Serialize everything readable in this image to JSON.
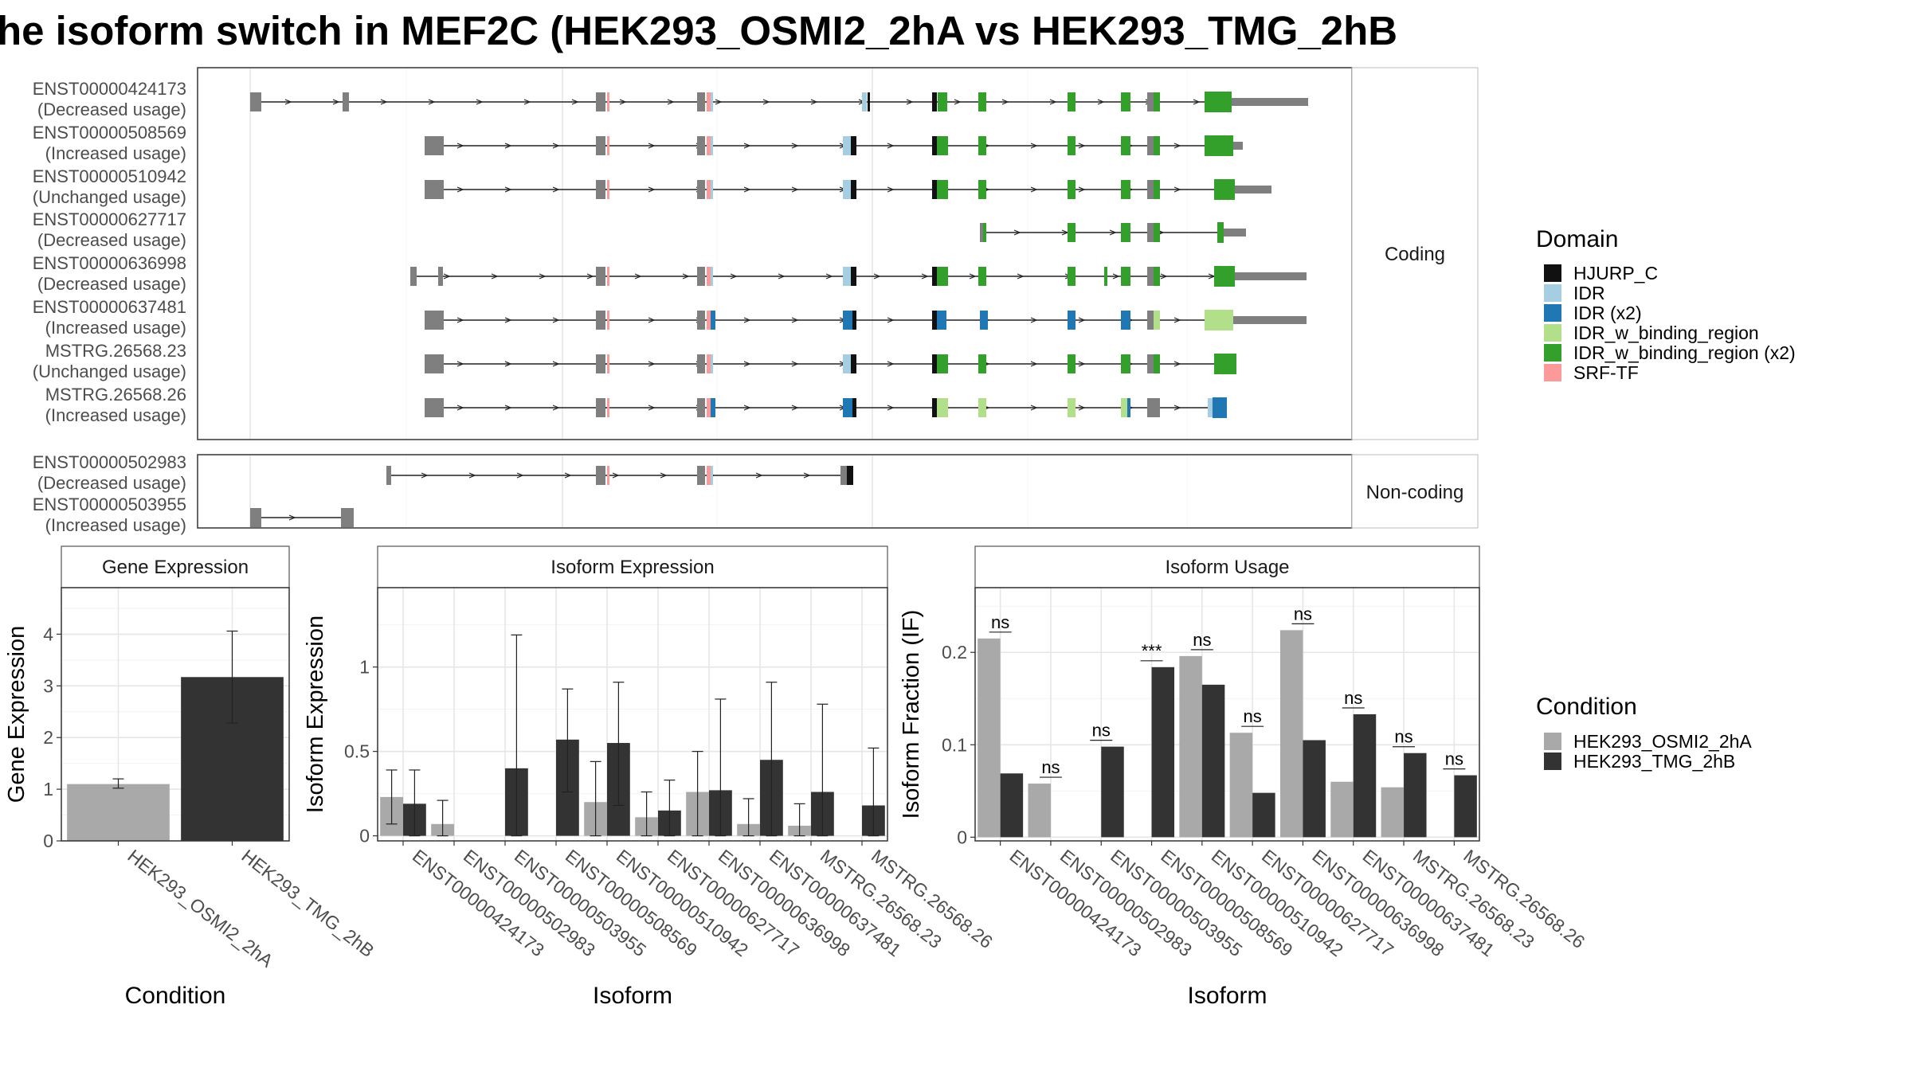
{
  "title": "he isoform switch in MEF2C (HEK293_OSMI2_2hA vs HEK293_TMG_2hB",
  "colors": {
    "exon": "#7f7f7f",
    "HJURP_C": "#111111",
    "IDR": "#a6cee3",
    "IDR (x2)": "#1f78b4",
    "IDR_w_binding_region": "#b2df8a",
    "IDR_w_binding_region (x2)": "#33a02c",
    "SRF-TF": "#fb9a99",
    "HEK293_OSMI2_2hA": "#a9a9a9",
    "HEK293_TMG_2hB": "#333333"
  },
  "structure": {
    "strip_coding": "Coding",
    "strip_noncoding": "Non-coding",
    "coding": [
      {
        "id": "ENST00000424173",
        "usage": "(Decreased usage)"
      },
      {
        "id": "ENST00000508569",
        "usage": "(Increased usage)"
      },
      {
        "id": "ENST00000510942",
        "usage": "(Unchanged usage)"
      },
      {
        "id": "ENST00000627717",
        "usage": "(Decreased usage)"
      },
      {
        "id": "ENST00000636998",
        "usage": "(Decreased usage)"
      },
      {
        "id": "ENST00000637481",
        "usage": "(Increased usage)"
      },
      {
        "id": "MSTRG.26568.23",
        "usage": "(Unchanged usage)"
      },
      {
        "id": "MSTRG.26568.26",
        "usage": "(Increased usage)"
      }
    ],
    "noncoding": [
      {
        "id": "ENST00000502983",
        "usage": "(Decreased usage)"
      },
      {
        "id": "ENST00000503955",
        "usage": "(Increased usage)"
      }
    ]
  },
  "legend_domain": {
    "title": "Domain",
    "items": [
      "HJURP_C",
      "IDR",
      "IDR (x2)",
      "IDR_w_binding_region",
      "IDR_w_binding_region (x2)",
      "SRF-TF"
    ]
  },
  "legend_condition": {
    "title": "Condition",
    "items": [
      "HEK293_OSMI2_2hA",
      "HEK293_TMG_2hB"
    ]
  },
  "chart_data": [
    {
      "type": "bar",
      "title": "Gene Expression",
      "xlabel": "Condition",
      "ylabel": "Gene Expression",
      "categories": [
        "HEK293_OSMI2_2hA",
        "HEK293_TMG_2hB"
      ],
      "values": [
        1.1,
        3.17
      ],
      "error_low": [
        1.02,
        2.28
      ],
      "error_high": [
        1.2,
        4.06
      ],
      "ylim": [
        0,
        4.9
      ],
      "yticks": [
        0,
        1,
        2,
        3,
        4
      ]
    },
    {
      "type": "bar",
      "title": "Isoform Expression",
      "xlabel": "Isoform",
      "ylabel": "Isoform Expression",
      "categories": [
        "ENST00000424173",
        "ENST00000502983",
        "ENST00000503955",
        "ENST00000508569",
        "ENST00000510942",
        "ENST00000627717",
        "ENST00000636998",
        "ENST00000637481",
        "MSTRG.26568.23",
        "MSTRG.26568.26"
      ],
      "series": [
        {
          "name": "HEK293_OSMI2_2hA",
          "values": [
            0.23,
            0.07,
            0.0,
            0.0,
            0.2,
            0.11,
            0.26,
            0.07,
            0.06,
            0.0
          ],
          "err_low": [
            0.07,
            0.0,
            0.0,
            0.0,
            0.0,
            0.0,
            0.0,
            0.0,
            0.0,
            0.0
          ],
          "err_high": [
            0.39,
            0.21,
            0.0,
            0.0,
            0.44,
            0.26,
            0.5,
            0.22,
            0.19,
            0.0
          ]
        },
        {
          "name": "HEK293_TMG_2hB",
          "values": [
            0.19,
            0.0,
            0.4,
            0.57,
            0.55,
            0.15,
            0.27,
            0.45,
            0.26,
            0.18
          ],
          "err_low": [
            0.0,
            0.0,
            0.0,
            0.26,
            0.18,
            0.0,
            0.0,
            0.0,
            0.0,
            0.0
          ],
          "err_high": [
            0.39,
            0.0,
            1.19,
            0.87,
            0.91,
            0.33,
            0.81,
            0.91,
            0.78,
            0.52
          ]
        }
      ],
      "ylim": [
        -0.03,
        1.47
      ],
      "yticks": [
        0.0,
        0.5,
        1.0
      ]
    },
    {
      "type": "bar",
      "title": "Isoform Usage",
      "xlabel": "Isoform",
      "ylabel": "Isoform Fraction (IF)",
      "categories": [
        "ENST00000424173",
        "ENST00000502983",
        "ENST00000503955",
        "ENST00000508569",
        "ENST00000510942",
        "ENST00000627717",
        "ENST00000636998",
        "ENST00000637481",
        "MSTRG.26568.23",
        "MSTRG.26568.26"
      ],
      "series": [
        {
          "name": "HEK293_OSMI2_2hA",
          "values": [
            0.215,
            0.058,
            0.0,
            0.0,
            0.196,
            0.113,
            0.224,
            0.06,
            0.054,
            0.0
          ]
        },
        {
          "name": "HEK293_TMG_2hB",
          "values": [
            0.069,
            0.0,
            0.098,
            0.184,
            0.165,
            0.048,
            0.105,
            0.133,
            0.091,
            0.067
          ]
        }
      ],
      "significance": [
        "ns",
        "ns",
        "ns",
        "***",
        "ns",
        "ns",
        "ns",
        "ns",
        "ns",
        "ns"
      ],
      "ylim": [
        -0.004,
        0.27
      ],
      "yticks": [
        0.0,
        0.1,
        0.2
      ]
    }
  ]
}
